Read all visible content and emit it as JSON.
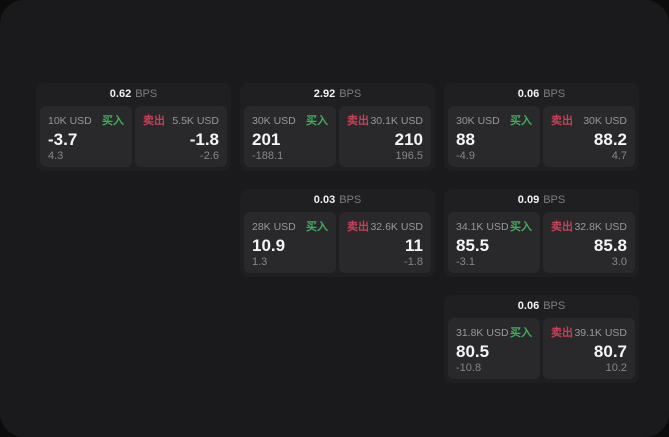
{
  "labels": {
    "bps": "BPS",
    "buy": "买入",
    "sell": "卖出"
  },
  "colors": {
    "buy_green": "#3fae58",
    "sell_red": "#c64056",
    "window_bg": "#1a1a1c",
    "card_bg": "#1f1f21",
    "panel_bg": "#29292c"
  },
  "cards": [
    {
      "bps": "0.62",
      "buy": {
        "amount": "10K USD",
        "price": "-3.7",
        "sub": "4.3"
      },
      "sell": {
        "amount": "5.5K USD",
        "price": "-1.8",
        "sub": "-2.6"
      }
    },
    {
      "bps": "2.92",
      "buy": {
        "amount": "30K USD",
        "price": "201",
        "sub": "-188.1"
      },
      "sell": {
        "amount": "30.1K USD",
        "price": "210",
        "sub": "196.5"
      }
    },
    {
      "bps": "0.06",
      "buy": {
        "amount": "30K USD",
        "price": "88",
        "sub": "-4.9"
      },
      "sell": {
        "amount": "30K USD",
        "price": "88.2",
        "sub": "4.7"
      }
    },
    {
      "bps": "0.03",
      "buy": {
        "amount": "28K USD",
        "price": "10.9",
        "sub": "1.3"
      },
      "sell": {
        "amount": "32.6K USD",
        "price": "11",
        "sub": "-1.8"
      }
    },
    {
      "bps": "0.09",
      "buy": {
        "amount": "34.1K USD",
        "price": "85.5",
        "sub": "-3.1"
      },
      "sell": {
        "amount": "32.8K USD",
        "price": "85.8",
        "sub": "3.0"
      }
    },
    {
      "bps": "0.06",
      "buy": {
        "amount": "31.8K USD",
        "price": "80.5",
        "sub": "-10.8"
      },
      "sell": {
        "amount": "39.1K USD",
        "price": "80.7",
        "sub": "10.2"
      }
    }
  ]
}
